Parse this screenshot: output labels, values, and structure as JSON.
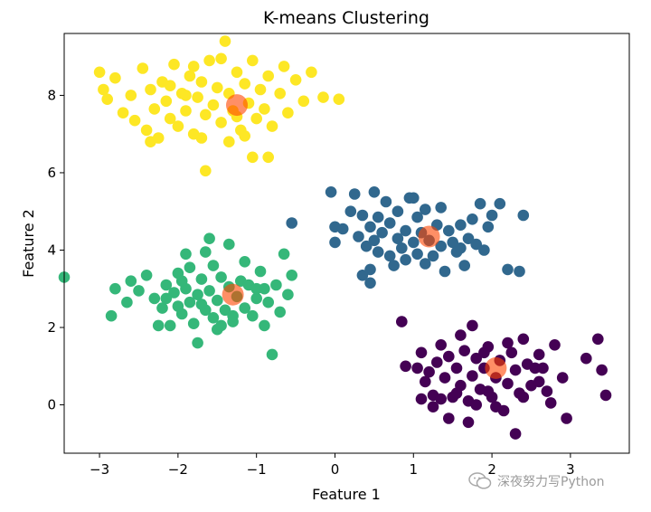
{
  "chart_data": {
    "type": "scatter",
    "title": "K-means Clustering",
    "xlabel": "Feature 1",
    "ylabel": "Feature 2",
    "xlim": [
      -3.45,
      3.75
    ],
    "ylim": [
      -1.25,
      9.6
    ],
    "xticks": [
      -3,
      -2,
      -1,
      0,
      1,
      2,
      3
    ],
    "yticks": [
      0,
      2,
      4,
      6,
      8
    ],
    "grid": false,
    "colormap": "viridis",
    "series": [
      {
        "cluster": 0,
        "color": "#440154",
        "points": [
          [
            0.85,
            2.15
          ],
          [
            0.9,
            1.0
          ],
          [
            1.05,
            0.95
          ],
          [
            1.1,
            1.35
          ],
          [
            1.15,
            0.6
          ],
          [
            1.2,
            0.85
          ],
          [
            1.25,
            0.25
          ],
          [
            1.3,
            1.1
          ],
          [
            1.35,
            1.55
          ],
          [
            1.4,
            0.7
          ],
          [
            1.45,
            1.25
          ],
          [
            1.5,
            0.2
          ],
          [
            1.55,
            0.95
          ],
          [
            1.6,
            0.5
          ],
          [
            1.65,
            1.4
          ],
          [
            1.7,
            0.1
          ],
          [
            1.75,
            0.75
          ],
          [
            1.75,
            2.05
          ],
          [
            1.8,
            1.2
          ],
          [
            1.85,
            0.4
          ],
          [
            1.9,
            0.95
          ],
          [
            1.95,
            1.5
          ],
          [
            2.0,
            0.2
          ],
          [
            2.05,
            0.7
          ],
          [
            2.1,
            1.15
          ],
          [
            2.15,
            -0.15
          ],
          [
            2.2,
            0.55
          ],
          [
            2.25,
            1.35
          ],
          [
            2.3,
            0.9
          ],
          [
            2.35,
            0.3
          ],
          [
            2.4,
            1.7
          ],
          [
            2.45,
            1.05
          ],
          [
            2.5,
            0.5
          ],
          [
            2.55,
            0.95
          ],
          [
            2.6,
            1.3
          ],
          [
            2.7,
            0.35
          ],
          [
            2.8,
            1.55
          ],
          [
            2.3,
            -0.75
          ],
          [
            1.7,
            -0.45
          ],
          [
            1.45,
            -0.35
          ],
          [
            1.35,
            0.15
          ],
          [
            1.6,
            1.8
          ],
          [
            2.05,
            -0.05
          ],
          [
            2.2,
            1.6
          ],
          [
            1.95,
            0.35
          ],
          [
            2.9,
            0.7
          ],
          [
            2.95,
            -0.35
          ],
          [
            3.2,
            1.2
          ],
          [
            3.35,
            1.7
          ],
          [
            3.4,
            0.9
          ],
          [
            3.45,
            0.25
          ],
          [
            2.65,
            0.95
          ],
          [
            1.55,
            0.3
          ],
          [
            1.9,
            1.35
          ],
          [
            1.25,
            -0.05
          ],
          [
            2.4,
            0.2
          ],
          [
            1.1,
            0.15
          ],
          [
            1.8,
            0.0
          ],
          [
            2.75,
            0.05
          ],
          [
            2.6,
            0.6
          ]
        ]
      },
      {
        "cluster": 1,
        "color": "#31688e",
        "points": [
          [
            -0.55,
            4.7
          ],
          [
            -0.05,
            5.5
          ],
          [
            0.0,
            4.6
          ],
          [
            0.0,
            4.2
          ],
          [
            0.1,
            4.55
          ],
          [
            0.2,
            5.0
          ],
          [
            0.25,
            5.45
          ],
          [
            0.3,
            4.35
          ],
          [
            0.35,
            4.9
          ],
          [
            0.4,
            4.1
          ],
          [
            0.45,
            4.6
          ],
          [
            0.45,
            3.5
          ],
          [
            0.45,
            3.15
          ],
          [
            0.5,
            5.5
          ],
          [
            0.5,
            4.25
          ],
          [
            0.55,
            4.85
          ],
          [
            0.55,
            3.95
          ],
          [
            0.6,
            4.45
          ],
          [
            0.65,
            5.25
          ],
          [
            0.7,
            3.85
          ],
          [
            0.7,
            4.7
          ],
          [
            0.75,
            3.6
          ],
          [
            0.8,
            4.3
          ],
          [
            0.8,
            5.0
          ],
          [
            0.85,
            4.05
          ],
          [
            0.9,
            4.5
          ],
          [
            0.9,
            3.75
          ],
          [
            0.95,
            5.35
          ],
          [
            1.0,
            4.2
          ],
          [
            1.0,
            5.35
          ],
          [
            1.05,
            3.9
          ],
          [
            1.05,
            4.85
          ],
          [
            1.1,
            4.45
          ],
          [
            1.15,
            3.65
          ],
          [
            1.15,
            5.05
          ],
          [
            1.2,
            4.25
          ],
          [
            1.25,
            3.85
          ],
          [
            1.3,
            4.65
          ],
          [
            1.35,
            4.1
          ],
          [
            1.35,
            5.1
          ],
          [
            1.4,
            3.45
          ],
          [
            1.45,
            4.5
          ],
          [
            1.5,
            4.2
          ],
          [
            1.55,
            3.95
          ],
          [
            1.6,
            4.65
          ],
          [
            1.65,
            3.6
          ],
          [
            1.7,
            4.3
          ],
          [
            1.75,
            4.8
          ],
          [
            1.8,
            4.15
          ],
          [
            1.85,
            5.2
          ],
          [
            1.9,
            4.0
          ],
          [
            1.95,
            4.6
          ],
          [
            2.0,
            4.9
          ],
          [
            2.1,
            5.2
          ],
          [
            2.2,
            3.5
          ],
          [
            2.35,
            3.45
          ],
          [
            2.4,
            4.9
          ],
          [
            0.35,
            3.35
          ],
          [
            1.6,
            4.05
          ]
        ]
      },
      {
        "cluster": 2,
        "color": "#35b779",
        "points": [
          [
            -3.45,
            3.3
          ],
          [
            -2.85,
            2.3
          ],
          [
            -2.8,
            3.0
          ],
          [
            -2.65,
            2.65
          ],
          [
            -2.6,
            3.2
          ],
          [
            -2.4,
            3.35
          ],
          [
            -2.3,
            2.75
          ],
          [
            -2.2,
            2.5
          ],
          [
            -2.15,
            3.1
          ],
          [
            -2.1,
            2.05
          ],
          [
            -2.05,
            2.9
          ],
          [
            -2.0,
            3.4
          ],
          [
            -1.95,
            2.35
          ],
          [
            -1.9,
            3.0
          ],
          [
            -1.85,
            2.65
          ],
          [
            -1.85,
            3.55
          ],
          [
            -1.8,
            2.1
          ],
          [
            -1.75,
            2.85
          ],
          [
            -1.75,
            1.6
          ],
          [
            -1.7,
            3.25
          ],
          [
            -1.65,
            2.45
          ],
          [
            -1.65,
            3.95
          ],
          [
            -1.6,
            2.95
          ],
          [
            -1.55,
            2.25
          ],
          [
            -1.55,
            3.6
          ],
          [
            -1.5,
            2.7
          ],
          [
            -1.5,
            1.95
          ],
          [
            -1.45,
            3.3
          ],
          [
            -1.4,
            2.45
          ],
          [
            -1.35,
            3.05
          ],
          [
            -1.3,
            2.15
          ],
          [
            -1.25,
            2.8
          ],
          [
            -1.2,
            3.2
          ],
          [
            -1.15,
            2.5
          ],
          [
            -1.1,
            3.1
          ],
          [
            -1.05,
            2.3
          ],
          [
            -1.0,
            2.75
          ],
          [
            -0.95,
            3.45
          ],
          [
            -0.9,
            2.05
          ],
          [
            -0.85,
            2.65
          ],
          [
            -0.8,
            1.3
          ],
          [
            -0.75,
            3.1
          ],
          [
            -0.7,
            2.4
          ],
          [
            -0.65,
            3.9
          ],
          [
            -0.6,
            2.85
          ],
          [
            -0.55,
            3.35
          ],
          [
            -1.6,
            4.3
          ],
          [
            -1.35,
            4.15
          ],
          [
            -1.9,
            3.9
          ],
          [
            -2.5,
            2.95
          ],
          [
            -1.3,
            2.3
          ],
          [
            -1.0,
            3.0
          ],
          [
            -2.25,
            2.05
          ],
          [
            -1.95,
            3.2
          ],
          [
            -1.45,
            2.05
          ],
          [
            -2.0,
            2.55
          ],
          [
            -1.7,
            2.6
          ],
          [
            -0.9,
            3.0
          ],
          [
            -1.15,
            3.7
          ],
          [
            -2.15,
            2.75
          ]
        ]
      },
      {
        "cluster": 3,
        "color": "#fde725",
        "points": [
          [
            -3.0,
            8.6
          ],
          [
            -2.95,
            8.15
          ],
          [
            -2.9,
            7.9
          ],
          [
            -2.8,
            8.45
          ],
          [
            -2.7,
            7.55
          ],
          [
            -2.6,
            8.0
          ],
          [
            -2.55,
            7.35
          ],
          [
            -2.45,
            8.7
          ],
          [
            -2.4,
            7.1
          ],
          [
            -2.35,
            8.15
          ],
          [
            -2.3,
            7.65
          ],
          [
            -2.25,
            6.9
          ],
          [
            -2.2,
            8.35
          ],
          [
            -2.15,
            7.85
          ],
          [
            -2.1,
            7.4
          ],
          [
            -2.05,
            8.8
          ],
          [
            -2.0,
            7.2
          ],
          [
            -1.95,
            8.05
          ],
          [
            -1.9,
            7.6
          ],
          [
            -1.85,
            8.5
          ],
          [
            -1.8,
            7.0
          ],
          [
            -1.75,
            7.95
          ],
          [
            -1.7,
            8.35
          ],
          [
            -1.65,
            7.5
          ],
          [
            -1.6,
            8.9
          ],
          [
            -1.55,
            7.75
          ],
          [
            -1.5,
            8.2
          ],
          [
            -1.45,
            7.3
          ],
          [
            -1.4,
            9.4
          ],
          [
            -1.35,
            8.05
          ],
          [
            -1.3,
            7.6
          ],
          [
            -1.25,
            8.6
          ],
          [
            -1.2,
            7.1
          ],
          [
            -1.15,
            8.3
          ],
          [
            -1.1,
            7.8
          ],
          [
            -1.05,
            8.9
          ],
          [
            -1.0,
            7.4
          ],
          [
            -0.95,
            8.15
          ],
          [
            -0.9,
            7.65
          ],
          [
            -0.85,
            8.5
          ],
          [
            -0.8,
            7.2
          ],
          [
            -0.7,
            8.05
          ],
          [
            -0.6,
            7.55
          ],
          [
            -0.5,
            8.4
          ],
          [
            -0.4,
            7.85
          ],
          [
            -0.3,
            8.6
          ],
          [
            -0.15,
            7.95
          ],
          [
            0.05,
            7.9
          ],
          [
            -1.65,
            6.05
          ],
          [
            -0.85,
            6.4
          ],
          [
            -1.05,
            6.4
          ],
          [
            -1.9,
            8.0
          ],
          [
            -2.1,
            8.25
          ],
          [
            -1.45,
            8.95
          ],
          [
            -1.25,
            7.45
          ],
          [
            -0.65,
            8.75
          ],
          [
            -1.7,
            6.9
          ],
          [
            -2.35,
            6.8
          ],
          [
            -1.15,
            6.95
          ],
          [
            -1.8,
            8.75
          ],
          [
            -1.35,
            6.8
          ]
        ]
      }
    ],
    "centroids": {
      "color": "#ff4500",
      "opacity": 0.6,
      "points": [
        [
          2.05,
          0.95
        ],
        [
          1.2,
          4.35
        ],
        [
          -1.3,
          2.85
        ],
        [
          -1.25,
          7.75
        ]
      ]
    }
  },
  "watermark": {
    "text": "深夜努力写Python",
    "icon": "wechat-icon"
  }
}
